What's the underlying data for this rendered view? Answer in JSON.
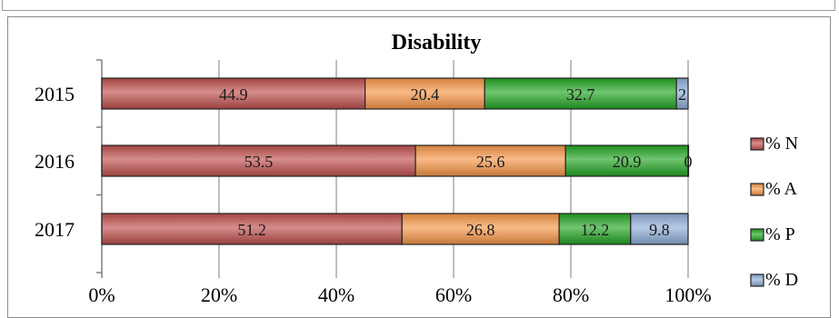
{
  "chart_data": {
    "type": "bar",
    "orientation": "horizontal",
    "stacked": true,
    "percent": true,
    "title": "Disability",
    "categories": [
      "2015",
      "2016",
      "2017"
    ],
    "series": [
      {
        "name": "% N",
        "values": [
          44.9,
          53.5,
          51.2
        ],
        "color": "#c0504d"
      },
      {
        "name": "% A",
        "values": [
          20.4,
          25.6,
          26.8
        ],
        "color": "#f79646"
      },
      {
        "name": "% P",
        "values": [
          32.7,
          20.9,
          12.2
        ],
        "color": "#23a623"
      },
      {
        "name": "% D",
        "values": [
          2,
          0,
          9.8
        ],
        "color": "#8eaed8"
      }
    ],
    "data_labels": [
      [
        "44.9",
        "20.4",
        "32.7",
        "2"
      ],
      [
        "53.5",
        "25.6",
        "20.9",
        "0"
      ],
      [
        "51.2",
        "26.8",
        "12.2",
        "9.8"
      ]
    ],
    "xaxis": {
      "ticks": [
        "0%",
        "20%",
        "40%",
        "60%",
        "80%",
        "100%"
      ],
      "range": [
        0,
        100
      ]
    },
    "grid": true,
    "legend_position": "right"
  }
}
